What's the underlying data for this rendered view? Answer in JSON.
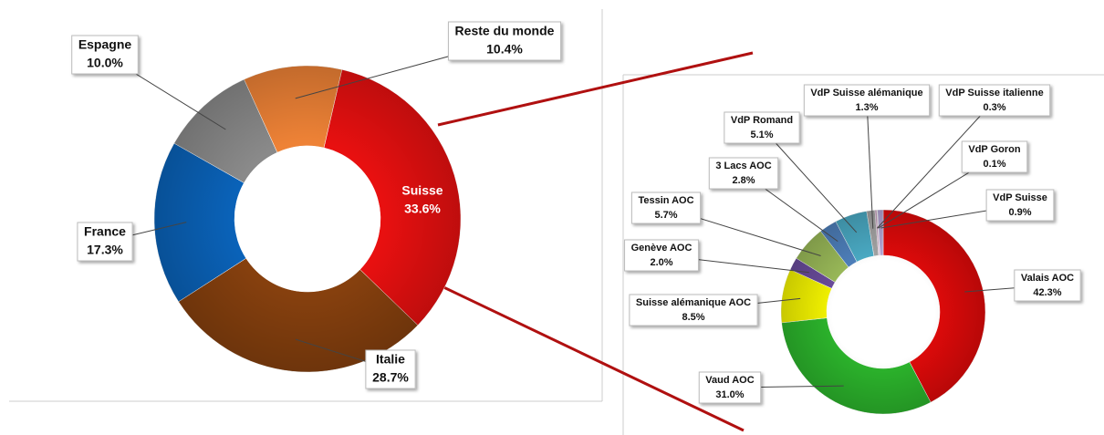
{
  "chart_data": [
    {
      "type": "donut",
      "categories": [
        "Suisse",
        "Italie",
        "France",
        "Espagne",
        "Reste du monde"
      ],
      "values": [
        33.6,
        28.7,
        17.3,
        10.0,
        10.4
      ],
      "value_labels": [
        "33.6%",
        "28.7%",
        "17.3%",
        "10.0%",
        "10.4%"
      ],
      "colors": [
        "#e81010",
        "#86400e",
        "#0a62b8",
        "#8a8a8a",
        "#ee8236"
      ]
    },
    {
      "type": "donut",
      "categories": [
        "Valais AOC",
        "Vaud AOC",
        "Suisse alémanique AOC",
        "Genève AOC",
        "Tessin AOC",
        "3 Lacs AOC",
        "VdP Romand",
        "VdP Suisse alémanique",
        "VdP Suisse italienne",
        "VdP Goron",
        "VdP Suisse"
      ],
      "values": [
        42.3,
        31.0,
        8.5,
        2.0,
        5.7,
        2.8,
        5.1,
        1.3,
        0.3,
        0.1,
        0.9
      ],
      "value_labels": [
        "42.3%",
        "31.0%",
        "8.5%",
        "2.0%",
        "5.7%",
        "2.8%",
        "5.1%",
        "1.3%",
        "0.3%",
        "0.1%",
        "0.9%"
      ],
      "colors": [
        "#e00a0a",
        "#2cb52c",
        "#f4f400",
        "#6a4c9c",
        "#9bbb59",
        "#4f81bd",
        "#4bacc6",
        "#a5a5a5",
        "#c9a0c0",
        "#d6d6d6",
        "#b4a7d6"
      ]
    }
  ]
}
